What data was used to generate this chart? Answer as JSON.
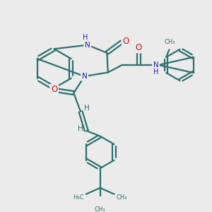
{
  "bg": "#ebebeb",
  "bc": "#2d7070",
  "nc": "#2020bb",
  "oc": "#cc1111",
  "lw": 1.6,
  "fs": 7.5,
  "dpi": 100,
  "xlim": [
    0,
    10
  ],
  "ylim": [
    0,
    10
  ]
}
